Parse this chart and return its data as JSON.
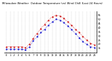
{
  "title": "Milwaukee Weather  Outdoor Temperature (vs) Wind Chill (Last 24 Hours)",
  "temp": [
    17,
    17,
    17,
    17,
    17,
    16,
    20,
    27,
    33,
    39,
    44,
    49,
    53,
    55,
    54,
    51,
    47,
    43,
    38,
    34,
    29,
    25,
    21,
    19
  ],
  "windchill": [
    14,
    14,
    14,
    14,
    14,
    13,
    17,
    24,
    29,
    34,
    38,
    43,
    47,
    50,
    49,
    46,
    42,
    38,
    33,
    28,
    23,
    20,
    17,
    16
  ],
  "hours": [
    0,
    1,
    2,
    3,
    4,
    5,
    6,
    7,
    8,
    9,
    10,
    11,
    12,
    13,
    14,
    15,
    16,
    17,
    18,
    19,
    20,
    21,
    22,
    23
  ],
  "hour_labels": [
    "0",
    "1",
    "2",
    "3",
    "4",
    "5",
    "6",
    "7",
    "8",
    "9",
    "10",
    "11",
    "12",
    "13",
    "14",
    "15",
    "16",
    "17",
    "18",
    "19",
    "20",
    "21",
    "22",
    "23"
  ],
  "temp_color": "#cc0000",
  "windchill_color": "#0000cc",
  "bg_color": "#ffffff",
  "ylim": [
    10,
    60
  ],
  "yticks": [
    15,
    20,
    25,
    30,
    35,
    40,
    45,
    50,
    55
  ],
  "grid_color": "#aaaaaa",
  "title_fontsize": 2.8,
  "axis_fontsize": 2.5,
  "marker_size": 1.2,
  "line_width": 0.5
}
